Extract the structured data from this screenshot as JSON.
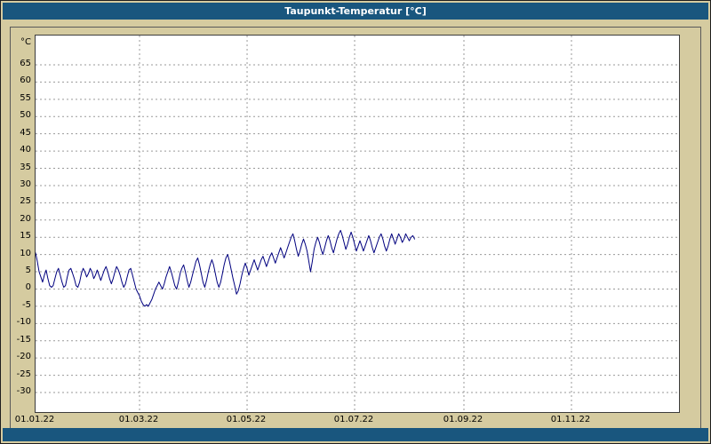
{
  "window": {
    "title": "Taupunkt-Temperatur [°C]"
  },
  "colors": {
    "titlebar": "#19567e",
    "background": "#d5cba0",
    "plot_background": "#ffffff",
    "series_line": "#00007f",
    "gridline": "#9a9a9a",
    "tick_text": "#000000"
  },
  "chart_data": {
    "type": "line",
    "title": "Taupunkt-Temperatur [°C]",
    "ylabel": "°C",
    "xlabel": "",
    "grid": "dashed",
    "legend": "none",
    "y_ticks": [
      65,
      60,
      55,
      50,
      45,
      40,
      35,
      30,
      25,
      20,
      15,
      10,
      5,
      0,
      -5,
      -10,
      -15,
      -20,
      -25,
      -30
    ],
    "ylim": [
      -35,
      70
    ],
    "x_tick_labels": [
      "01.01.22",
      "01.03.22",
      "01.05.22",
      "01.07.22",
      "01.09.22",
      "01.11.22"
    ],
    "x_tick_days": [
      0,
      59,
      120,
      181,
      243,
      304
    ],
    "x_range_days": [
      0,
      365
    ],
    "series": [
      {
        "name": "Taupunkt-Temperatur",
        "color": "#00007f",
        "x_start_day": 0,
        "x_step_days": 1,
        "values": [
          10.5,
          8,
          5,
          3.5,
          2,
          4,
          5.5,
          3,
          1,
          0.5,
          1,
          3,
          5,
          6,
          4,
          2,
          0.5,
          1,
          3.5,
          5.5,
          6,
          4.5,
          3,
          1,
          0.5,
          2,
          4.5,
          6,
          5,
          3.5,
          4.5,
          6,
          5,
          3,
          4,
          5.5,
          4,
          2.5,
          4,
          5.5,
          6.5,
          5,
          3,
          1.5,
          3,
          5,
          6.5,
          5.5,
          4,
          2,
          0.5,
          1.5,
          3.5,
          5.5,
          6,
          4,
          2,
          0,
          -1,
          -2,
          -3.5,
          -4.5,
          -5,
          -4.5,
          -5,
          -4,
          -3,
          -1.5,
          0,
          1,
          2,
          1,
          0,
          1.5,
          3.5,
          5,
          6.5,
          5,
          3,
          1,
          0,
          2,
          4.5,
          6,
          7,
          5,
          2.5,
          0.5,
          2,
          4,
          6,
          8,
          9,
          7,
          4.5,
          2,
          0.5,
          2.5,
          5,
          7,
          8.5,
          7,
          4.5,
          2,
          0.5,
          2,
          4.5,
          7,
          9,
          10,
          8,
          5.5,
          3,
          1,
          -1.5,
          -0.5,
          1.5,
          4,
          6,
          7.5,
          6,
          4,
          5.5,
          7,
          8.5,
          7,
          5.5,
          7,
          8.5,
          9.5,
          8,
          6.5,
          8,
          9.5,
          10.5,
          9,
          7.5,
          9,
          10.5,
          12,
          10.5,
          9,
          10.5,
          12,
          13.5,
          15,
          16,
          14,
          11.5,
          9.5,
          11,
          13,
          14.5,
          13,
          11,
          8,
          5,
          8,
          11.5,
          13.5,
          15,
          13.5,
          11.5,
          10,
          12,
          14,
          15.5,
          14,
          12,
          10.5,
          12.5,
          14.5,
          16,
          17,
          15.5,
          13.5,
          11.5,
          13,
          15,
          16.5,
          15,
          13,
          11,
          12.5,
          14,
          12.5,
          11,
          12.5,
          14,
          15.5,
          14,
          12,
          10.5,
          12,
          13.5,
          15,
          16,
          14.5,
          12.5,
          11,
          12.5,
          14.5,
          16,
          14.5,
          13,
          14.5,
          16,
          15,
          13.5,
          14.5,
          16,
          15,
          14,
          15,
          15.5,
          14.5
        ]
      }
    ]
  }
}
